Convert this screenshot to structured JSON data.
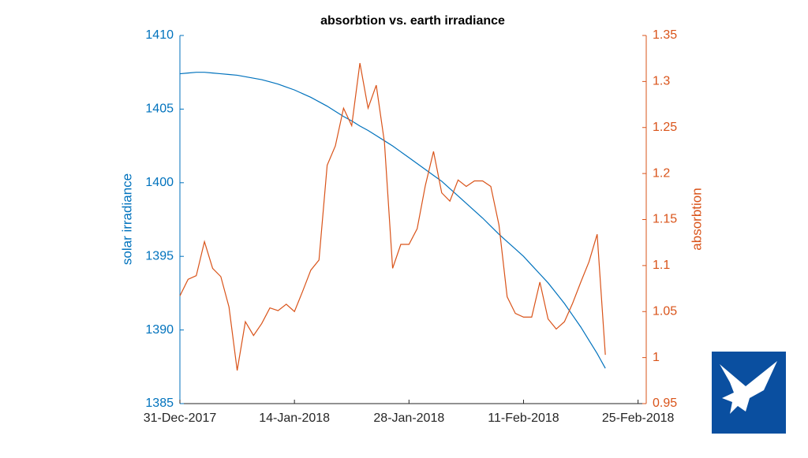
{
  "chart_data": {
    "type": "line",
    "title": "absorbtion vs. earth irradiance",
    "ylabel": "solar irradiance",
    "y2label": "absorbtion",
    "x": [
      "2017-12-31",
      "2018-01-01",
      "2018-01-02",
      "2018-01-03",
      "2018-01-04",
      "2018-01-05",
      "2018-01-06",
      "2018-01-07",
      "2018-01-08",
      "2018-01-09",
      "2018-01-10",
      "2018-01-11",
      "2018-01-12",
      "2018-01-13",
      "2018-01-14",
      "2018-01-15",
      "2018-01-16",
      "2018-01-17",
      "2018-01-18",
      "2018-01-19",
      "2018-01-20",
      "2018-01-21",
      "2018-01-22",
      "2018-01-23",
      "2018-01-24",
      "2018-01-25",
      "2018-01-26",
      "2018-01-27",
      "2018-01-28",
      "2018-01-29",
      "2018-01-30",
      "2018-01-31",
      "2018-02-01",
      "2018-02-02",
      "2018-02-03",
      "2018-02-04",
      "2018-02-05",
      "2018-02-06",
      "2018-02-07",
      "2018-02-08",
      "2018-02-09",
      "2018-02-10",
      "2018-02-11",
      "2018-02-12",
      "2018-02-13",
      "2018-02-14",
      "2018-02-15",
      "2018-02-16",
      "2018-02-17",
      "2018-02-18",
      "2018-02-19",
      "2018-02-20",
      "2018-02-21"
    ],
    "series": [
      {
        "color": "#0072BD",
        "values": [
          1407.4,
          1407.45,
          1407.5,
          1407.5,
          1407.45,
          1407.4,
          1407.35,
          1407.3,
          1407.2,
          1407.1,
          1407.0,
          1406.85,
          1406.7,
          1406.5,
          1406.3,
          1406.05,
          1405.8,
          1405.5,
          1405.2,
          1404.85,
          1404.5,
          1404.2,
          1403.85,
          1403.55,
          1403.2,
          1402.85,
          1402.5,
          1402.1,
          1401.7,
          1401.3,
          1400.9,
          1400.5,
          1400.1,
          1399.6,
          1399.1,
          1398.6,
          1398.1,
          1397.6,
          1397.05,
          1396.5,
          1396.0,
          1395.5,
          1395.0,
          1394.4,
          1393.8,
          1393.2,
          1392.5,
          1391.8,
          1391.0,
          1390.2,
          1389.3,
          1388.4,
          1387.4
        ]
      },
      {
        "color": "#D95319",
        "axis": "y2",
        "values": [
          1.067,
          1.085,
          1.089,
          1.126,
          1.097,
          1.088,
          1.055,
          0.986,
          1.039,
          1.024,
          1.037,
          1.054,
          1.051,
          1.058,
          1.05,
          1.072,
          1.095,
          1.106,
          1.209,
          1.23,
          1.271,
          1.252,
          1.32,
          1.271,
          1.296,
          1.234,
          1.097,
          1.123,
          1.123,
          1.14,
          1.187,
          1.224,
          1.179,
          1.17,
          1.193,
          1.186,
          1.192,
          1.192,
          1.186,
          1.144,
          1.066,
          1.048,
          1.044,
          1.044,
          1.082,
          1.042,
          1.031,
          1.039,
          1.059,
          1.082,
          1.104,
          1.134,
          1.003
        ]
      }
    ],
    "xlim": [
      "2017-12-31",
      "2018-02-26"
    ],
    "xticks": [
      {
        "value": "2017-12-31",
        "label": "31-Dec-2017"
      },
      {
        "value": "2018-01-14",
        "label": "14-Jan-2018"
      },
      {
        "value": "2018-01-28",
        "label": "28-Jan-2018"
      },
      {
        "value": "2018-02-11",
        "label": "11-Feb-2018"
      },
      {
        "value": "2018-02-25",
        "label": "25-Feb-2018"
      }
    ],
    "ylim": [
      1385,
      1410
    ],
    "yticks": [
      1385,
      1390,
      1395,
      1400,
      1405,
      1410
    ],
    "y2lim": [
      0.95,
      1.35
    ],
    "y2ticks": [
      0.95,
      1,
      1.05,
      1.1,
      1.15,
      1.2,
      1.25,
      1.3,
      1.35
    ],
    "grid": false
  }
}
